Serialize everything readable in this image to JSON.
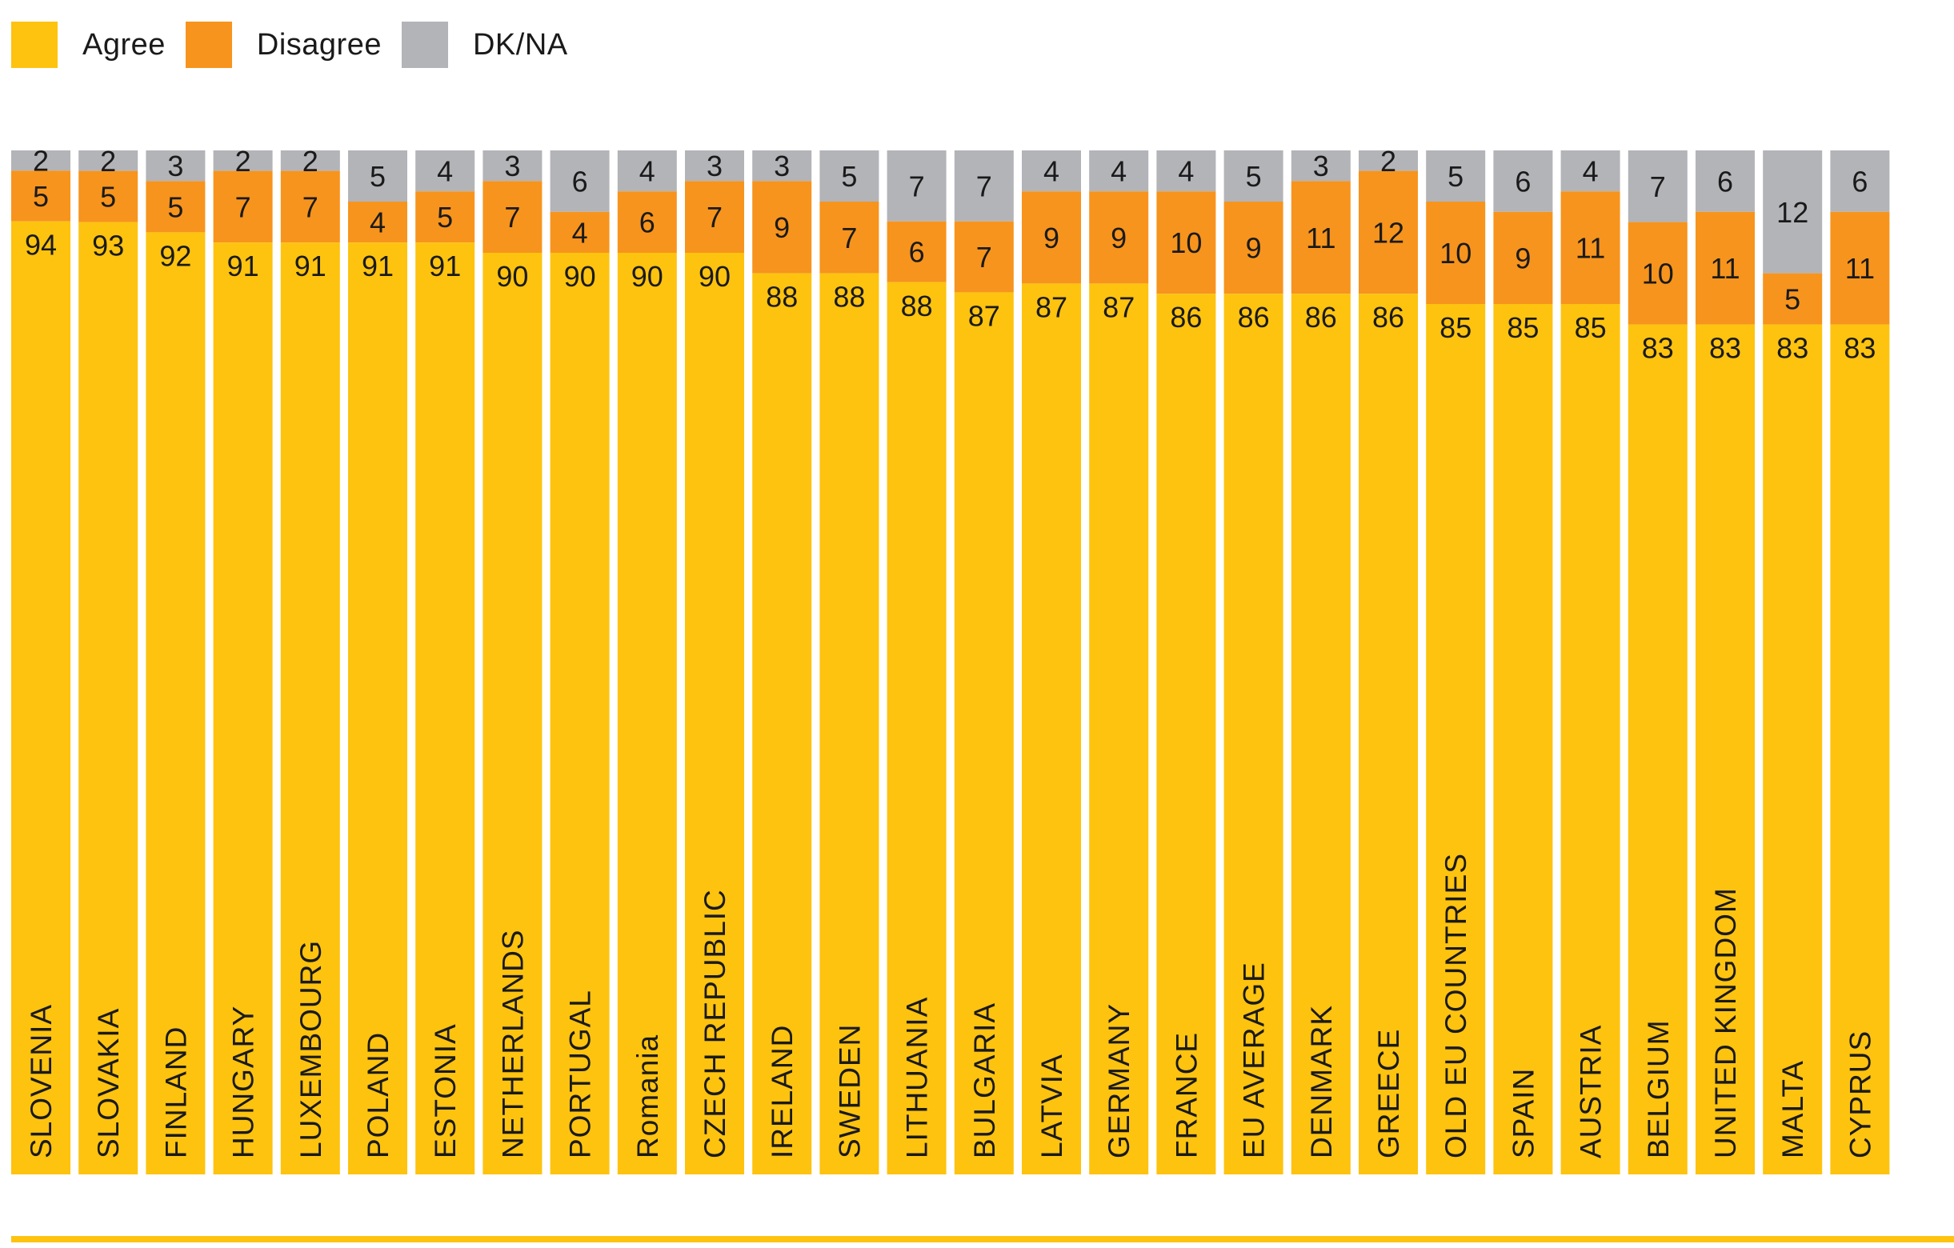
{
  "legend": [
    {
      "label": "Agree",
      "color": "#fdc30f"
    },
    {
      "label": "Disagree",
      "color": "#f7941d"
    },
    {
      "label": "DK/NA",
      "color": "#b3b4b8"
    }
  ],
  "chart_data": {
    "type": "bar",
    "stacked": true,
    "percent_stacked": true,
    "title": "",
    "xlabel": "",
    "ylabel": "",
    "ylim": [
      0,
      100
    ],
    "grid": false,
    "legend_position": "top-left",
    "categories": [
      "SLOVENIA",
      "SLOVAKIA",
      "FINLAND",
      "HUNGARY",
      "LUXEMBOURG",
      "POLAND",
      "ESTONIA",
      "NETHERLANDS",
      "PORTUGAL",
      "Romania",
      "CZECH REPUBLIC",
      "IRELAND",
      "SWEDEN",
      "LITHUANIA",
      "BULGARIA",
      "LATVIA",
      "GERMANY",
      "FRANCE",
      "EU AVERAGE",
      "DENMARK",
      "GREECE",
      "OLD EU COUNTRIES",
      "SPAIN",
      "AUSTRIA",
      "BELGIUM",
      "UNITED KINGDOM",
      "MALTA",
      "CYPRUS"
    ],
    "series": [
      {
        "name": "Agree",
        "color": "#fdc30f",
        "values": [
          94,
          93,
          92,
          91,
          91,
          91,
          91,
          90,
          90,
          90,
          90,
          88,
          88,
          88,
          87,
          87,
          87,
          86,
          86,
          86,
          86,
          85,
          85,
          85,
          83,
          83,
          83,
          83
        ]
      },
      {
        "name": "Disagree",
        "color": "#f7941d",
        "values": [
          5,
          5,
          5,
          7,
          7,
          4,
          5,
          7,
          4,
          6,
          7,
          9,
          7,
          6,
          7,
          9,
          9,
          10,
          9,
          11,
          12,
          10,
          9,
          11,
          10,
          11,
          5,
          11
        ]
      },
      {
        "name": "DK/NA",
        "color": "#b3b4b8",
        "values": [
          2,
          2,
          3,
          2,
          2,
          5,
          4,
          3,
          6,
          4,
          3,
          3,
          5,
          7,
          7,
          4,
          4,
          4,
          5,
          3,
          2,
          5,
          6,
          4,
          7,
          6,
          12,
          6
        ]
      }
    ]
  },
  "colors": {
    "baseline": "#fdc30f",
    "text": "#1a1a1a"
  }
}
